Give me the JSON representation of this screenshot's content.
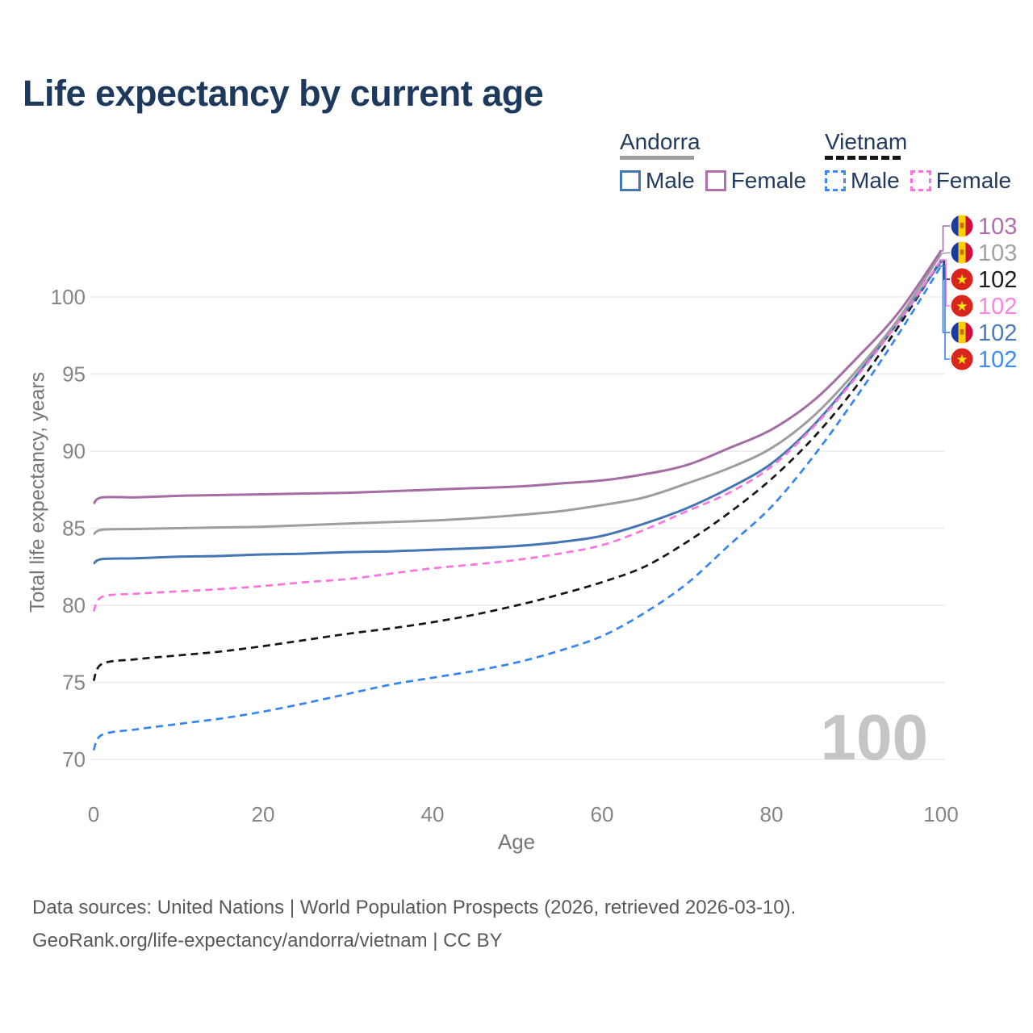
{
  "title": "Life expectancy by current age",
  "watermark": "100",
  "legend": {
    "groups": [
      {
        "country": "Andorra",
        "line_style": "solid",
        "underline_color": "#9e9e9e",
        "items": [
          {
            "label": "Male",
            "color": "#4576b4"
          },
          {
            "label": "Female",
            "color": "#b06fae"
          }
        ]
      },
      {
        "country": "Vietnam",
        "line_style": "dashed",
        "underline_color": "#161616",
        "items": [
          {
            "label": "Male",
            "color": "#3d8af5"
          },
          {
            "label": "Female",
            "color": "#fb74de"
          }
        ]
      }
    ]
  },
  "footer": {
    "line1": "Data sources: United Nations | World Population Prospects (2026, retrieved 2026-03-10).",
    "line2": "GeoRank.org/life-expectancy/andorra/vietnam | CC BY"
  },
  "chart_data": {
    "type": "line",
    "title": "Life expectancy by current age",
    "xlabel": "Age",
    "ylabel": "Total life expectancy, years",
    "xlim": [
      0,
      100
    ],
    "ylim": [
      68.5,
      104.5
    ],
    "x_ticks": [
      0,
      20,
      40,
      60,
      80,
      100
    ],
    "y_ticks": [
      70,
      75,
      80,
      85,
      90,
      95,
      100
    ],
    "grid": "horizontal",
    "grid_color": "#ebebeb",
    "tick_color": "#858585",
    "watermark_color": "#c5c5c5",
    "legend_position": "top-right",
    "ages": [
      0,
      1,
      5,
      10,
      15,
      20,
      25,
      30,
      35,
      40,
      45,
      50,
      55,
      60,
      65,
      70,
      75,
      80,
      85,
      90,
      95,
      100
    ],
    "series": [
      {
        "name": "Andorra Female",
        "country": "Andorra",
        "sex": "Female",
        "line": "solid",
        "color": "#a46da3",
        "label_color": "#ae6cab",
        "flag": "andorra",
        "end_label": "103",
        "row": 0,
        "values": [
          86.6,
          87.0,
          87.0,
          87.1,
          87.15,
          87.2,
          87.25,
          87.3,
          87.4,
          87.5,
          87.6,
          87.7,
          87.9,
          88.1,
          88.5,
          89.1,
          90.2,
          91.4,
          93.3,
          96.0,
          99.0,
          103.0
        ]
      },
      {
        "name": "Andorra Both sexes",
        "country": "Andorra",
        "sex": "Both sexes",
        "line": "solid",
        "color": "#9e9e9e",
        "label_color": "#a2a2a2",
        "flag": "andorra",
        "end_label": "103",
        "row": 1,
        "values": [
          84.6,
          84.9,
          84.95,
          85.0,
          85.05,
          85.1,
          85.2,
          85.3,
          85.4,
          85.5,
          85.65,
          85.85,
          86.1,
          86.5,
          87.0,
          87.9,
          88.9,
          90.2,
          92.3,
          95.2,
          98.6,
          102.8
        ]
      },
      {
        "name": "Vietnam Both sexes",
        "country": "Vietnam",
        "sex": "Both sexes",
        "line": "dashed",
        "color": "#151515",
        "label_color": "#1a1a1a",
        "flag": "vietnam",
        "end_label": "102",
        "row": 2,
        "values": [
          75.1,
          76.2,
          76.5,
          76.75,
          77.0,
          77.35,
          77.75,
          78.15,
          78.5,
          78.9,
          79.4,
          80.0,
          80.7,
          81.5,
          82.5,
          84.1,
          86.0,
          88.2,
          90.9,
          94.2,
          98.1,
          102.4
        ]
      },
      {
        "name": "Vietnam Female",
        "country": "Vietnam",
        "sex": "Female",
        "line": "dashed",
        "color": "#fb74de",
        "label_color": "#fb84e1",
        "flag": "vietnam",
        "end_label": "102",
        "row": 3,
        "values": [
          79.6,
          80.55,
          80.75,
          80.9,
          81.05,
          81.25,
          81.5,
          81.7,
          82.05,
          82.4,
          82.65,
          82.95,
          83.35,
          83.9,
          84.9,
          86.1,
          87.3,
          89.0,
          91.6,
          94.8,
          98.4,
          102.4
        ]
      },
      {
        "name": "Andorra Male",
        "country": "Andorra",
        "sex": "Male",
        "line": "solid",
        "color": "#4576b4",
        "label_color": "#4a7ab8",
        "flag": "andorra",
        "end_label": "102",
        "row": 4,
        "values": [
          82.7,
          83.0,
          83.05,
          83.15,
          83.2,
          83.3,
          83.35,
          83.45,
          83.5,
          83.6,
          83.7,
          83.85,
          84.1,
          84.5,
          85.3,
          86.3,
          87.6,
          89.2,
          91.7,
          94.9,
          98.4,
          102.3
        ]
      },
      {
        "name": "Vietnam Male",
        "country": "Vietnam",
        "sex": "Male",
        "line": "dashed",
        "color": "#3585f2",
        "label_color": "#3d8af5",
        "flag": "vietnam",
        "end_label": "102",
        "row": 5,
        "values": [
          70.6,
          71.6,
          71.95,
          72.3,
          72.65,
          73.1,
          73.65,
          74.25,
          74.85,
          75.3,
          75.75,
          76.3,
          77.05,
          78.0,
          79.5,
          81.4,
          83.9,
          86.4,
          89.7,
          93.5,
          97.6,
          102.0
        ]
      }
    ]
  }
}
